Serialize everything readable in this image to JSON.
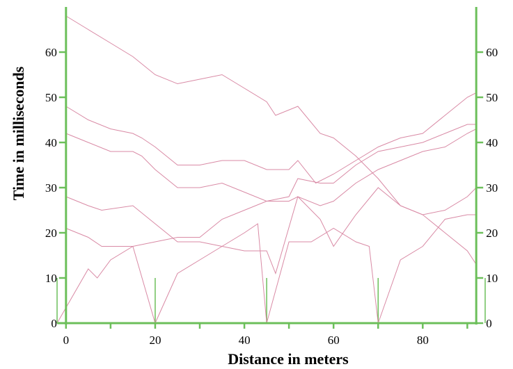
{
  "chart_data": {
    "type": "line",
    "xlabel": "Distance in meters",
    "ylabel": "Time in milliseconds",
    "xlim": [
      -2,
      94
    ],
    "ylim": [
      0,
      70
    ],
    "xticks": [
      0,
      20,
      40,
      60,
      80
    ],
    "yticks_left": [
      0,
      10,
      20,
      30,
      40,
      50,
      60
    ],
    "yticks_right": [
      0,
      10,
      20,
      30,
      40,
      50,
      60
    ],
    "shot_points": [
      -2,
      20,
      45,
      70,
      94
    ],
    "colors": {
      "axis": "#6cbf5a",
      "series": "#d98aa5"
    },
    "series": [
      {
        "x": [
          0,
          5,
          10,
          15,
          20,
          25,
          30,
          35,
          40,
          45,
          47,
          52,
          57,
          60,
          65,
          70,
          75,
          80,
          85,
          90,
          92
        ],
        "y": [
          68,
          65,
          62,
          59,
          55,
          53,
          54,
          55,
          52,
          49,
          46,
          48,
          42,
          41,
          37,
          32,
          26,
          24,
          20,
          16,
          13
        ]
      },
      {
        "x": [
          0,
          5,
          10,
          15,
          17,
          20,
          25,
          30,
          35,
          40,
          45,
          50,
          52,
          56,
          60,
          65,
          70,
          75,
          80,
          85,
          90,
          92
        ],
        "y": [
          48,
          45,
          43,
          42,
          41,
          39,
          35,
          35,
          36,
          36,
          34,
          34,
          36,
          31,
          33,
          36,
          39,
          41,
          42,
          46,
          50,
          51
        ]
      },
      {
        "x": [
          0,
          5,
          10,
          15,
          17,
          20,
          25,
          30,
          35,
          40,
          45,
          50,
          52,
          57,
          60,
          65,
          70,
          75,
          80,
          85,
          90,
          92
        ],
        "y": [
          42,
          40,
          38,
          38,
          37,
          34,
          30,
          30,
          31,
          29,
          27,
          28,
          32,
          31,
          31,
          35,
          38,
          39,
          40,
          42,
          44,
          44
        ]
      },
      {
        "x": [
          0,
          5,
          8,
          15,
          20,
          25,
          30,
          35,
          40,
          45,
          47,
          52,
          57,
          60,
          65,
          70,
          75,
          80,
          85,
          90,
          92
        ],
        "y": [
          28,
          26,
          25,
          26,
          22,
          18,
          18,
          17,
          16,
          16,
          11,
          28,
          23,
          17,
          24,
          30,
          26,
          24,
          25,
          28,
          30
        ]
      },
      {
        "x": [
          0,
          5,
          8,
          12,
          15,
          20,
          25,
          30,
          35,
          40,
          45,
          50,
          52,
          57,
          60,
          65,
          70,
          75,
          80,
          85,
          90,
          92
        ],
        "y": [
          21,
          19,
          17,
          17,
          17,
          18,
          19,
          19,
          23,
          25,
          27,
          27,
          28,
          26,
          27,
          31,
          34,
          36,
          38,
          39,
          42,
          43
        ]
      },
      {
        "x": [
          -2,
          5,
          7,
          10,
          15,
          20,
          25,
          30,
          35,
          40,
          43,
          45,
          50,
          55,
          60,
          65,
          68,
          70,
          75,
          80,
          85,
          90,
          92
        ],
        "y": [
          0,
          12,
          10,
          14,
          17,
          0,
          11,
          14,
          17,
          20,
          22,
          0,
          18,
          18,
          21,
          18,
          17,
          0,
          14,
          17,
          23,
          24,
          24
        ]
      }
    ]
  }
}
